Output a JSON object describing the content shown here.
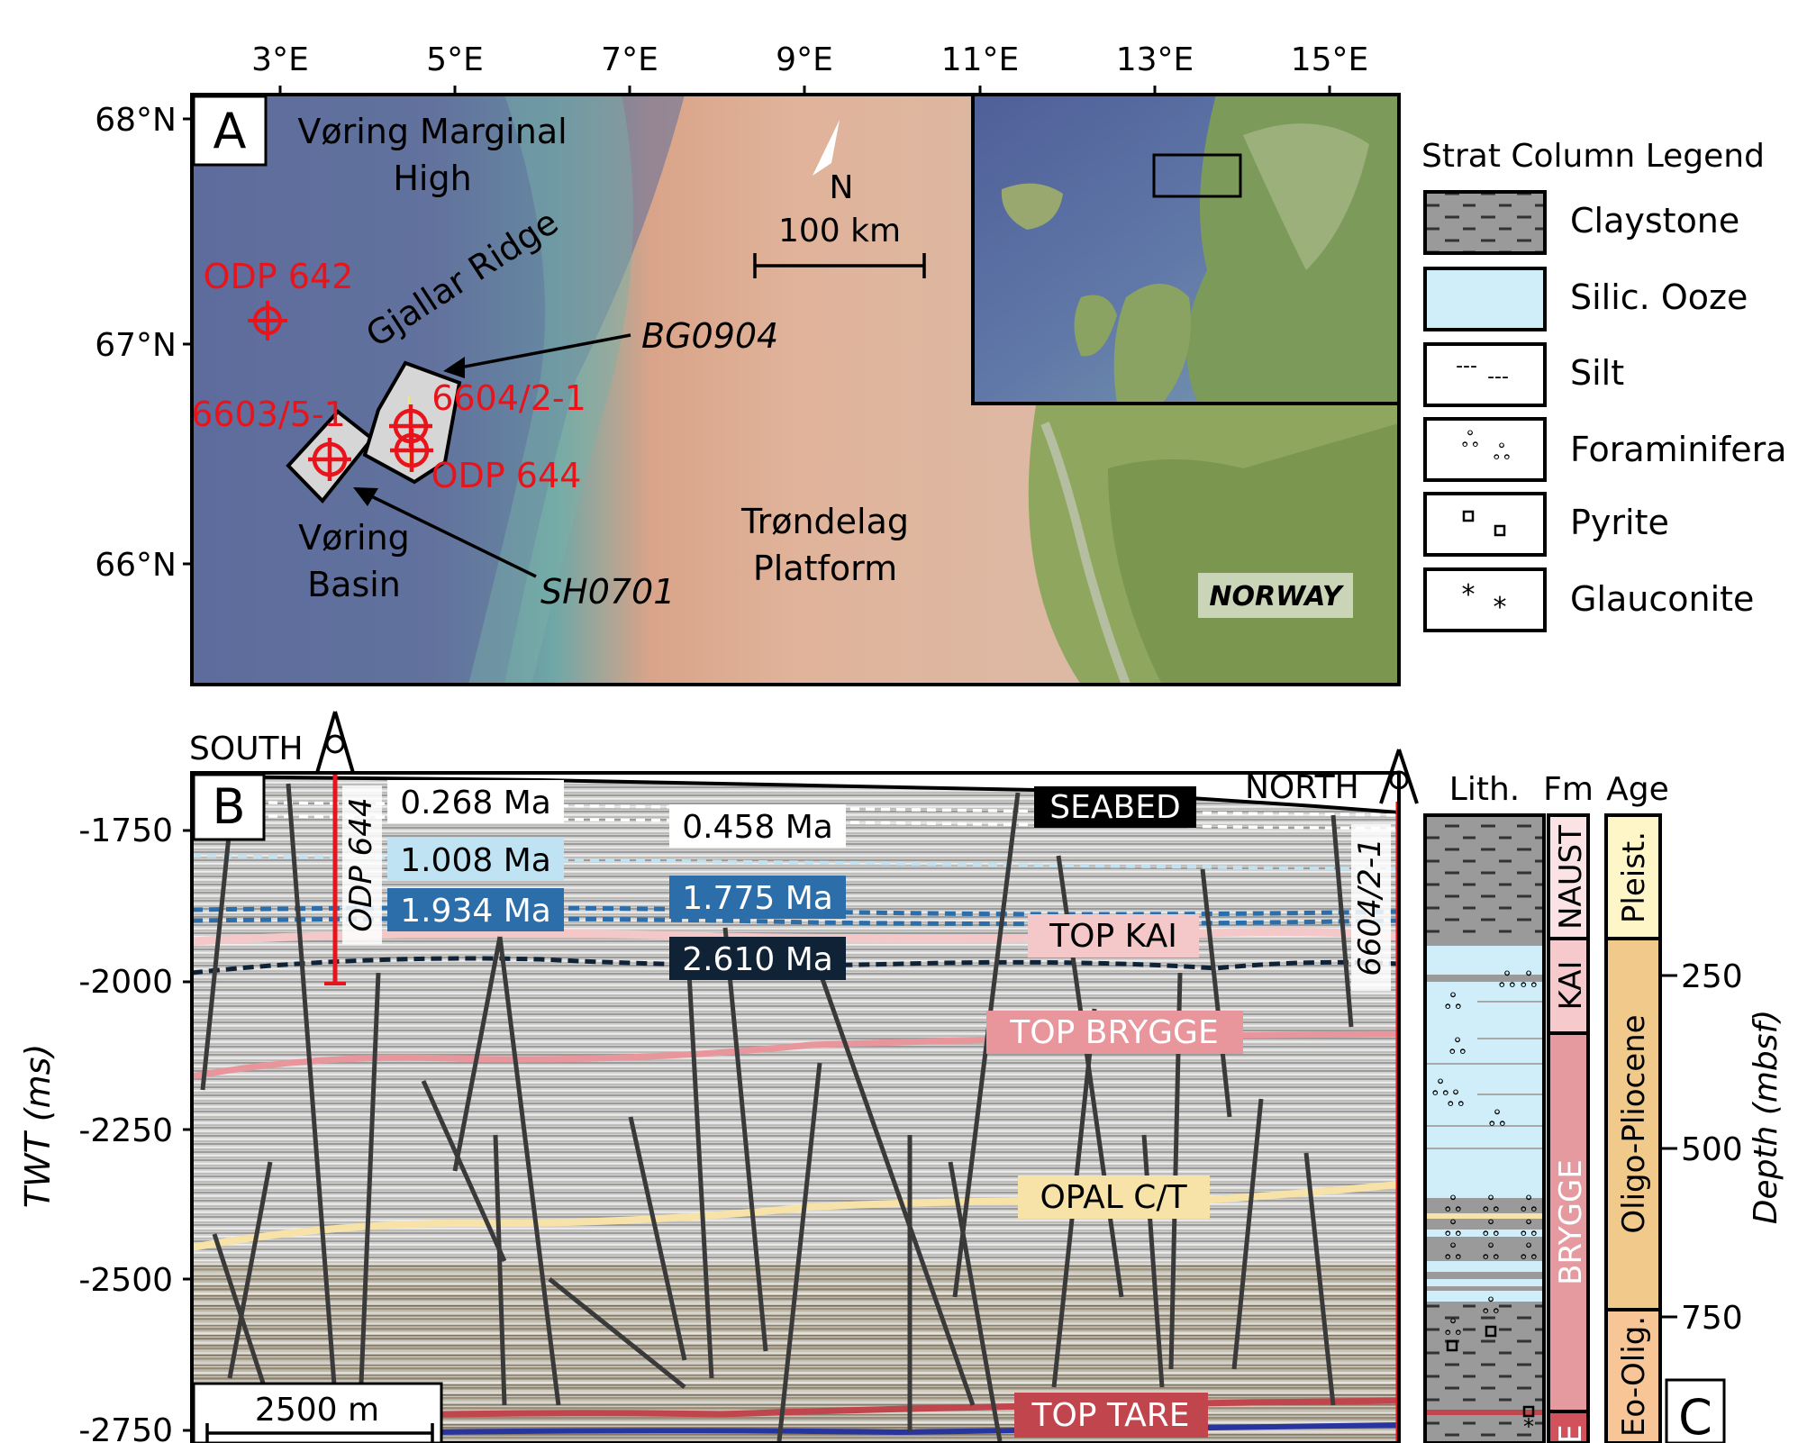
{
  "panelA": {
    "label": "A",
    "lon_ticks": [
      "3°E",
      "5°E",
      "7°E",
      "9°E",
      "11°E",
      "13°E",
      "15°E"
    ],
    "lat_ticks": [
      "68°N",
      "67°N",
      "66°N"
    ],
    "places": {
      "voring_high_1": "Vøring Marginal",
      "voring_high_2": "High",
      "gjallar": "Gjallar Ridge",
      "voring_basin_1": "Vøring",
      "voring_basin_2": "Basin",
      "trondelag_1": "Trøndelag",
      "trondelag_2": "Platform",
      "norway": "NORWAY"
    },
    "wells": {
      "odp642": "ODP 642",
      "w6603": "6603/5-1",
      "w6604": "6604/2-1",
      "odp644": "ODP 644"
    },
    "surveys": {
      "bg": "BG0904",
      "sh": "SH0701"
    },
    "north": "N",
    "scalebar": "100 km"
  },
  "legend": {
    "title": "Strat Column Legend",
    "items": [
      "Claystone",
      "Silic. Ooze",
      "Silt",
      "Foraminifera",
      "Pyrite",
      "Glauconite"
    ]
  },
  "panelB": {
    "label": "B",
    "south": "SOUTH",
    "north": "NORTH",
    "y_axis_title": "TWT (ms)",
    "y_ticks": [
      "-1750",
      "-2000",
      "-2250",
      "-2500",
      "-2750"
    ],
    "well_odp": "ODP 644",
    "well_6604": "6604/2-1",
    "ages": [
      "0.268 Ma",
      "1.008 Ma",
      "1.934 Ma",
      "0.458 Ma",
      "1.775 Ma",
      "2.610 Ma"
    ],
    "horizons": [
      "SEABED",
      "TOP KAI",
      "TOP BRYGGE",
      "OPAL C/T",
      "TOP TARE"
    ],
    "scalebar": "2500 m"
  },
  "panelC": {
    "label": "C",
    "col_headers": [
      "Lith.",
      "Fm",
      "Age"
    ],
    "formations": [
      "NAUST",
      "KAI",
      "BRYGGE",
      "E"
    ],
    "ages": [
      "Pleist.",
      "Oligo-Pliocene",
      "Eo-Olig."
    ],
    "depth_ticks": [
      "250",
      "500",
      "750"
    ],
    "depth_title": "Depth (mbsf)"
  },
  "colors": {
    "well_red": "#e8141b",
    "ocean_deep": "#5e6c9c",
    "shelf": "#d9a07c",
    "land": "#7f9a5c",
    "silic_ooze": "#cfeefa",
    "claystone": "#9a9a9a",
    "naust": "#fbe3e5",
    "kai": "#f6c9cc",
    "brygge": "#e59aa0",
    "pleist": "#fff6c8",
    "oligo_pliocene": "#f1c98a",
    "eo_olig": "#f8c596",
    "age_white": "#ffffff",
    "age_lightblue": "#bfe3f2",
    "age_blue": "#2c6eaa",
    "age_dark": "#0f2236",
    "hz_seabed": "#000000",
    "hz_topkai": "#f4c8c8",
    "hz_topbrygge": "#e8959c",
    "hz_opal": "#f7e3a8",
    "hz_toptare": "#c0454d"
  }
}
